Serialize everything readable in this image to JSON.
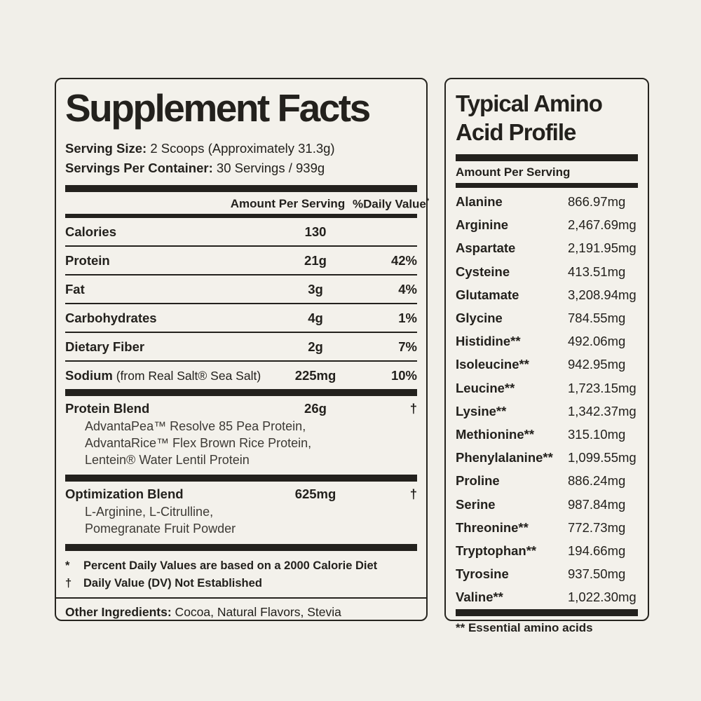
{
  "colors": {
    "background": "#f1efe9",
    "panel_background": "#f3f1eb",
    "ink": "#23211d"
  },
  "supplement_panel": {
    "title": "Supplement Facts",
    "serving_size_label": "Serving Size:",
    "serving_size_value": "2 Scoops (Approximately 31.3g)",
    "servings_per_container_label": "Servings Per Container:",
    "servings_per_container_value": "30 Servings / 939g",
    "col_amount_header": "Amount Per Serving",
    "col_dv_header": "%Daily Value",
    "col_dv_mark": "*",
    "nutrient_rows": [
      {
        "label": "Calories",
        "note": "",
        "amount": "130",
        "dv": ""
      },
      {
        "label": "Protein",
        "note": "",
        "amount": "21g",
        "dv": "42%"
      },
      {
        "label": "Fat",
        "note": "",
        "amount": "3g",
        "dv": "4%"
      },
      {
        "label": "Carbohydrates",
        "note": "",
        "amount": "4g",
        "dv": "1%"
      },
      {
        "label": "Dietary Fiber",
        "note": "",
        "amount": "2g",
        "dv": "7%"
      },
      {
        "label": "Sodium",
        "note": " (from Real Salt® Sea Salt)",
        "amount": "225mg",
        "dv": "10%"
      }
    ],
    "blends": [
      {
        "name": "Protein Blend",
        "amount": "26g",
        "dv": "†",
        "ingredients": "AdvantaPea™ Resolve 85 Pea Protein,\nAdvantaRice™ Flex Brown Rice Protein,\nLentein® Water Lentil Protein"
      },
      {
        "name": "Optimization Blend",
        "amount": "625mg",
        "dv": "†",
        "ingredients": "L-Arginine, L-Citrulline,\nPomegranate Fruit Powder"
      }
    ],
    "footnotes": [
      {
        "mark": "*",
        "text": "Percent Daily Values are based on a 2000 Calorie Diet"
      },
      {
        "mark": "†",
        "text": "Daily Value (DV) Not Established"
      }
    ],
    "other_ingredients_label": "Other Ingredients:",
    "other_ingredients_value": " Cocoa, Natural Flavors, Stevia"
  },
  "amino_panel": {
    "title": "Typical Amino Acid Profile",
    "col_header": "Amount Per Serving",
    "rows": [
      {
        "name": "Alanine",
        "amount": "866.97mg"
      },
      {
        "name": "Arginine",
        "amount": "2,467.69mg"
      },
      {
        "name": "Aspartate",
        "amount": "2,191.95mg"
      },
      {
        "name": "Cysteine",
        "amount": "413.51mg"
      },
      {
        "name": "Glutamate",
        "amount": "3,208.94mg"
      },
      {
        "name": "Glycine",
        "amount": "784.55mg"
      },
      {
        "name": "Histidine**",
        "amount": "492.06mg"
      },
      {
        "name": "Isoleucine**",
        "amount": "942.95mg"
      },
      {
        "name": "Leucine**",
        "amount": "1,723.15mg"
      },
      {
        "name": "Lysine**",
        "amount": "1,342.37mg"
      },
      {
        "name": "Methionine**",
        "amount": "315.10mg"
      },
      {
        "name": "Phenylalanine**",
        "amount": "1,099.55mg"
      },
      {
        "name": "Proline",
        "amount": "886.24mg"
      },
      {
        "name": "Serine",
        "amount": "987.84mg"
      },
      {
        "name": "Threonine**",
        "amount": "772.73mg"
      },
      {
        "name": "Tryptophan**",
        "amount": "194.66mg"
      },
      {
        "name": "Tyrosine",
        "amount": "937.50mg"
      },
      {
        "name": "Valine**",
        "amount": "1,022.30mg"
      }
    ],
    "footnote": "** Essential amino acids"
  }
}
